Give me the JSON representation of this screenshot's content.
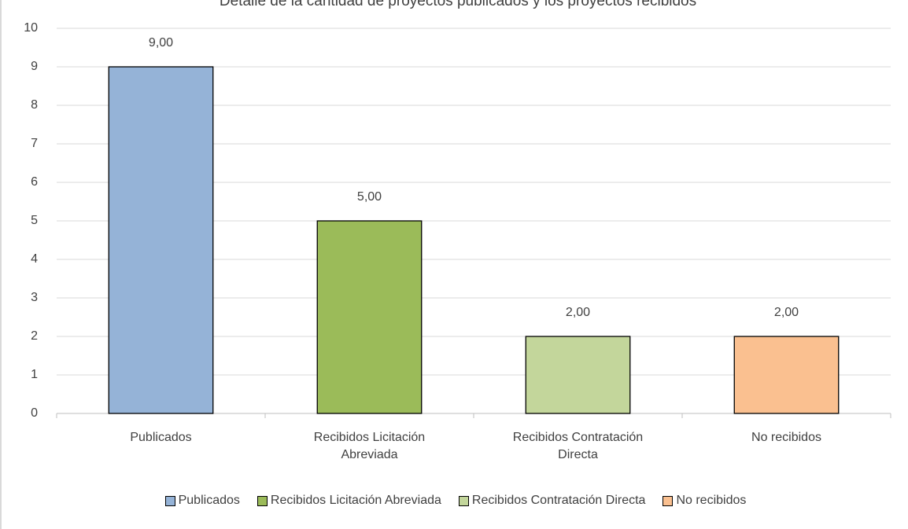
{
  "chart_data": {
    "type": "bar",
    "title": "Detalle de la cantidad de proyectos publicados y los proyectos recibidos",
    "categories": [
      "Publicados",
      "Recibidos Licitación Abreviada",
      "Recibidos Contratación Directa",
      "No recibidos"
    ],
    "values": [
      9,
      5,
      2,
      2
    ],
    "value_labels": [
      "9,00",
      "5,00",
      "2,00",
      "2,00"
    ],
    "colors": [
      "#95b3d7",
      "#9bbb59",
      "#c3d69b",
      "#fac090"
    ],
    "ylim": [
      0,
      10
    ],
    "yticks": [
      0,
      1,
      2,
      3,
      4,
      5,
      6,
      7,
      8,
      9,
      10
    ],
    "grid": true,
    "legend": "bottom"
  }
}
